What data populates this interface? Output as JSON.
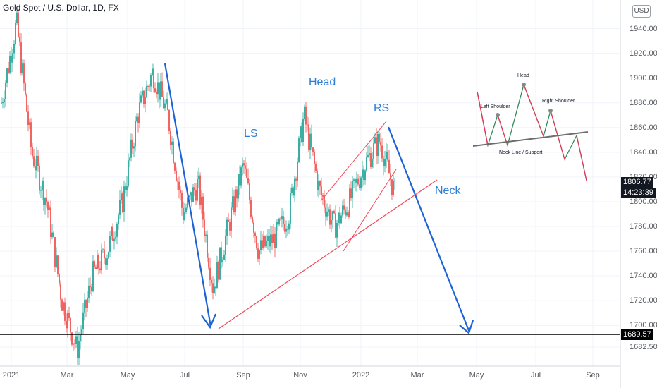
{
  "header": {
    "title": "Gold Spot / U.S. Dollar, 1D, FX"
  },
  "currency_button": "USD",
  "annotations": {
    "ls": "LS",
    "head": "Head",
    "rs": "RS",
    "neck": "Neck"
  },
  "inset": {
    "head": "Head",
    "left_shoulder": "Left Shoulder",
    "right_shoulder": "Right Shoulder",
    "neck_line": "Neck Line / Support"
  },
  "colors": {
    "up": "#26a69a",
    "down": "#ef5350",
    "trend": "#1e63d6",
    "neck": "#f04a5a",
    "neck_text": "#2a7fd8",
    "price_tag": "#131722",
    "support": "#000000"
  },
  "price_tags": {
    "current": "1806.77",
    "countdown": "14:23:39",
    "support": "1689.57"
  },
  "chart_data": {
    "type": "line",
    "title": "Gold Spot / U.S. Dollar, 1D, FX",
    "xlabel": "",
    "ylabel": "",
    "y_ticks": [
      "1940.00",
      "1920.00",
      "1900.00",
      "1880.00",
      "1860.00",
      "1840.00",
      "1820.00",
      "1800.00",
      "1780.00",
      "1760.00",
      "1740.00",
      "1720.00",
      "1700.00",
      "1682.50"
    ],
    "x_ticks": [
      "2021",
      "Mar",
      "May",
      "Jul",
      "Sep",
      "Nov",
      "2022",
      "Mar",
      "May",
      "Jul",
      "Sep"
    ],
    "ylim": [
      1672,
      1952
    ],
    "x": [
      "2021-01",
      "2021-01",
      "2021-02",
      "2021-02",
      "2021-03",
      "2021-03",
      "2021-04",
      "2021-04",
      "2021-05",
      "2021-05",
      "2021-06",
      "2021-06",
      "2021-07",
      "2021-07",
      "2021-08",
      "2021-08",
      "2021-09",
      "2021-09",
      "2021-10",
      "2021-10",
      "2021-11",
      "2021-11",
      "2021-12",
      "2021-12",
      "2022-01",
      "2022-01",
      "2022-02"
    ],
    "series": [
      {
        "values": [
          1880,
          1945,
          1840,
          1800,
          1720,
          1680,
          1740,
          1760,
          1800,
          1870,
          1905,
          1870,
          1790,
          1815,
          1730,
          1780,
          1830,
          1760,
          1770,
          1790,
          1870,
          1810,
          1780,
          1800,
          1830,
          1850,
          1807
        ]
      }
    ],
    "support_level": 1689.57,
    "last_price": 1806.77
  }
}
